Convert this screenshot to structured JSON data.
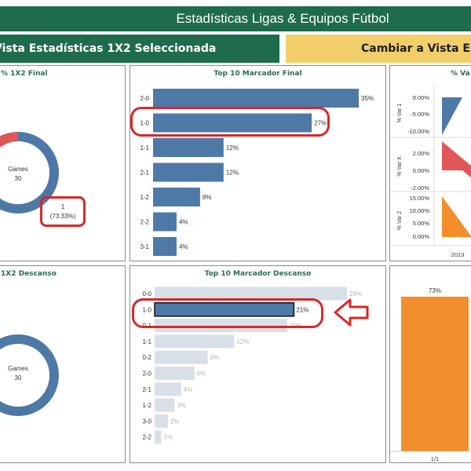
{
  "header": {
    "title": "Estadísticas Ligas & Equipos Fútbol"
  },
  "view_buttons": {
    "current_label": "Vista Estadísticas 1X2 Seleccionada",
    "switch_label": "Cambiar a Vista Est"
  },
  "panels": {
    "final_1x2": {
      "title": "% 1X2 Final",
      "center_label": "Games",
      "center_value": "30",
      "callout_line1": "1",
      "callout_line2": "(73.33%)",
      "colors": {
        "main": "#4e79a7",
        "other": "#e15759"
      }
    },
    "top10_final": {
      "title": "Top 10 Marcador Final",
      "chart_data": {
        "type": "bar",
        "orientation": "horizontal",
        "categories": [
          "2-0",
          "1-0",
          "1-1",
          "2-1",
          "1-2",
          "2-2",
          "3-1"
        ],
        "values": [
          35,
          27,
          12,
          12,
          8,
          4,
          4
        ],
        "value_labels": [
          "35%",
          "27%",
          "12%",
          "12%",
          "8%",
          "4%",
          "4%"
        ],
        "highlighted_category": "1-0",
        "bar_color": "#4e79a7"
      }
    },
    "var_chart": {
      "title": "% Va",
      "rows": [
        {
          "label": "% Var 1",
          "ticks": [
            "0.00%",
            "-5.00%",
            "-10.00%"
          ],
          "color": "#4e79a7"
        },
        {
          "label": "% Var X",
          "ticks": [
            "2.00%",
            "0.00%",
            "-2.00%"
          ],
          "color": "#e15759"
        },
        {
          "label": "% Var 2",
          "ticks": [
            "15.00%",
            "10.00%",
            "5.00%",
            "0.00%"
          ],
          "color": "#f28e2b"
        }
      ],
      "x_tick": "2013"
    },
    "descanso_1x2": {
      "title": "1X2 Descanso",
      "center_label": "Games",
      "center_value": "30",
      "colors": {
        "main": "#4e79a7"
      }
    },
    "top10_descanso": {
      "title": "Top 10 Marcador Descanso",
      "chart_data": {
        "type": "bar",
        "orientation": "horizontal",
        "categories": [
          "0-0",
          "1-0",
          "0-1",
          "1-1",
          "0-2",
          "2-0",
          "2-1",
          "1-2",
          "3-0",
          "2-2"
        ],
        "values": [
          29,
          21,
          20,
          12,
          8,
          6,
          4,
          3,
          2,
          1
        ],
        "value_labels": [
          "29%",
          "21%",
          "20%",
          "12%",
          "8%",
          "6%",
          "4%",
          "3%",
          "2%",
          "1%"
        ],
        "highlighted_category": "1-0",
        "bar_color": "#d9dfe7",
        "highlight_color": "#4e79a7"
      }
    },
    "bar_bottom_right": {
      "chart_data": {
        "type": "bar",
        "categories": [
          "1/1"
        ],
        "values": [
          73
        ],
        "value_labels": [
          "73%"
        ],
        "bar_color": "#f28e2b"
      }
    }
  }
}
